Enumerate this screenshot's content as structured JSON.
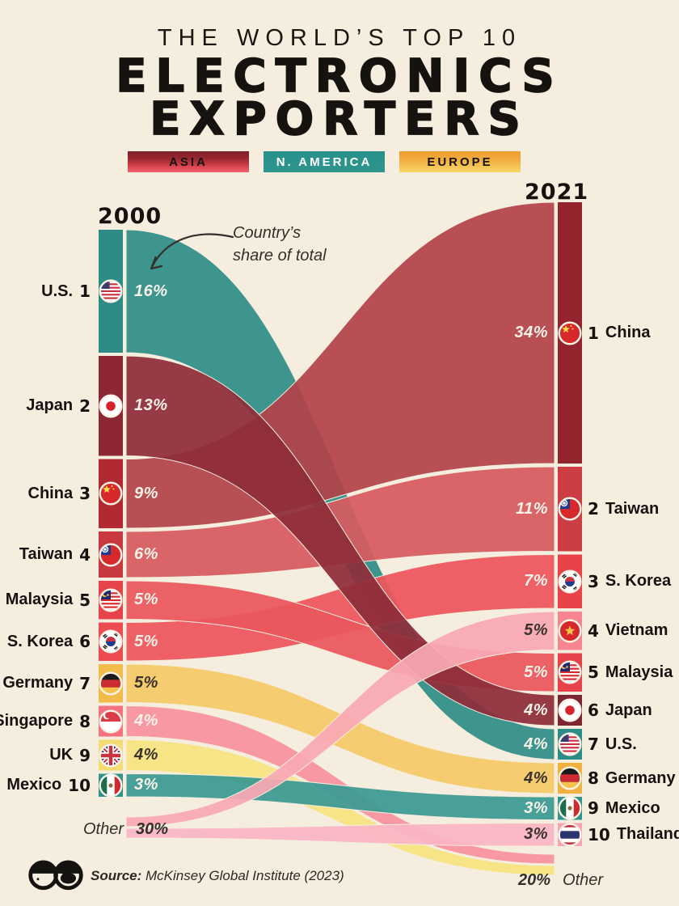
{
  "page": {
    "background": "#F5EEDF"
  },
  "header": {
    "kicker": "THE WORLD’S TOP 10",
    "title_line1": "ELECTRONICS",
    "title_line2": "EXPORTERS"
  },
  "legend": [
    {
      "label": "ASIA",
      "text_color": "#16120F",
      "stops": [
        "#7E1F28",
        "#9A2730 35%",
        "#C23841 60%",
        "#E24E59 80%",
        "#F2616D"
      ]
    },
    {
      "label": "N. AMERICA",
      "text_color": "#FFFFFF",
      "stops": [
        "#27918A",
        "#2F968E"
      ]
    },
    {
      "label": "EUROPE",
      "text_color": "#16120F",
      "stops": [
        "#EE9E30",
        "#F1AC3E 40%",
        "#F4C254 70%",
        "#F6D767"
      ]
    }
  ],
  "columns": {
    "left_year": "2000",
    "right_year": "2021"
  },
  "annotation": {
    "line1": "Country’s",
    "line2": "share of total"
  },
  "other_left": {
    "label": "Other",
    "share": "30%"
  },
  "other_right": {
    "share": "20%",
    "label": "Other"
  },
  "source": {
    "prefix": "Source:",
    "text": " McKinsey Global Institute (2023)"
  },
  "chart_data": {
    "type": "sankey",
    "title": "The World's Top 10 Electronics Exporters",
    "unit": "country share of total electronics exports (%)",
    "years": [
      "2000",
      "2021"
    ],
    "legend_position": "top",
    "regions": {
      "Asia": "#C23841",
      "N. America": "#2D8C85",
      "Europe": "#F2BC4B"
    },
    "left_nodes": [
      {
        "rank": 1,
        "country": "U.S.",
        "share_pct": 16,
        "region": "N. America",
        "flag": "us",
        "bar_color": "#2D8C85",
        "label_style": "light"
      },
      {
        "rank": 2,
        "country": "Japan",
        "share_pct": 13,
        "region": "Asia",
        "flag": "jp",
        "bar_color": "#8C2733",
        "label_style": "light"
      },
      {
        "rank": 3,
        "country": "China",
        "share_pct": 9,
        "region": "Asia",
        "flag": "cn",
        "bar_color": "#B12A31",
        "label_style": "light"
      },
      {
        "rank": 4,
        "country": "Taiwan",
        "share_pct": 6,
        "region": "Asia",
        "flag": "tw",
        "bar_color": "#C8393F",
        "label_style": "light"
      },
      {
        "rank": 5,
        "country": "Malaysia",
        "share_pct": 5,
        "region": "Asia",
        "flag": "my",
        "bar_color": "#E6444A",
        "label_style": "light"
      },
      {
        "rank": 6,
        "country": "S. Korea",
        "share_pct": 5,
        "region": "Asia",
        "flag": "kr",
        "bar_color": "#EC4B51",
        "label_style": "light"
      },
      {
        "rank": 7,
        "country": "Germany",
        "share_pct": 5,
        "region": "Europe",
        "flag": "de",
        "bar_color": "#F2BC4B",
        "label_style": "dark"
      },
      {
        "rank": 8,
        "country": "Singapore",
        "share_pct": 4,
        "region": "Asia",
        "flag": "sg",
        "bar_color": "#F4737E",
        "label_style": "light"
      },
      {
        "rank": 9,
        "country": "UK",
        "share_pct": 4,
        "region": "Europe",
        "flag": "gb",
        "bar_color": "#F3DC72",
        "label_style": "dark"
      },
      {
        "rank": 10,
        "country": "Mexico",
        "share_pct": 3,
        "region": "N. America",
        "flag": "mx",
        "bar_color": "#31948C",
        "label_style": "light"
      }
    ],
    "right_nodes": [
      {
        "rank": 1,
        "country": "China",
        "share_pct": 34,
        "region": "Asia",
        "flag": "cn",
        "bar_color": "#93232C",
        "label_style": "light"
      },
      {
        "rank": 2,
        "country": "Taiwan",
        "share_pct": 11,
        "region": "Asia",
        "flag": "tw",
        "bar_color": "#CC3E44",
        "label_style": "light"
      },
      {
        "rank": 3,
        "country": "S. Korea",
        "share_pct": 7,
        "region": "Asia",
        "flag": "kr",
        "bar_color": "#E94349",
        "label_style": "light"
      },
      {
        "rank": 4,
        "country": "Vietnam",
        "share_pct": 5,
        "region": "Asia",
        "flag": "vn",
        "bar_color": "#F58691",
        "label_style": "dark"
      },
      {
        "rank": 5,
        "country": "Malaysia",
        "share_pct": 5,
        "region": "Asia",
        "flag": "my",
        "bar_color": "#E6444A",
        "label_style": "light"
      },
      {
        "rank": 6,
        "country": "Japan",
        "share_pct": 4,
        "region": "Asia",
        "flag": "jp",
        "bar_color": "#7D2530",
        "label_style": "light"
      },
      {
        "rank": 7,
        "country": "U.S.",
        "share_pct": 4,
        "region": "N. America",
        "flag": "us",
        "bar_color": "#2D8C85",
        "label_style": "light"
      },
      {
        "rank": 8,
        "country": "Germany",
        "share_pct": 4,
        "region": "Europe",
        "flag": "de",
        "bar_color": "#F1B140",
        "label_style": "dark"
      },
      {
        "rank": 9,
        "country": "Mexico",
        "share_pct": 3,
        "region": "N. America",
        "flag": "mx",
        "bar_color": "#31948C",
        "label_style": "light"
      },
      {
        "rank": 10,
        "country": "Thailand",
        "share_pct": 3,
        "region": "Asia",
        "flag": "th",
        "bar_color": "#F8A2B6",
        "label_style": "dark"
      }
    ],
    "left_other": {
      "label": "Other",
      "share_pct": 30
    },
    "right_other": {
      "label": "Other",
      "share_pct": 20
    },
    "flows": [
      {
        "id": "us",
        "from": "U.S.",
        "to": "U.S.",
        "pct_2000": 16,
        "pct_2021": 4,
        "color": "#2E8E87"
      },
      {
        "id": "japan",
        "from": "Japan",
        "to": "Japan",
        "pct_2000": 13,
        "pct_2021": 4,
        "color": "#8E2D39"
      },
      {
        "id": "china",
        "from": "China",
        "to": "China",
        "pct_2000": 9,
        "pct_2021": 34,
        "color": "#B2434A"
      },
      {
        "id": "taiwan",
        "from": "Taiwan",
        "to": "Taiwan",
        "pct_2000": 6,
        "pct_2021": 11,
        "color": "#D65A60"
      },
      {
        "id": "malaysia",
        "from": "Malaysia",
        "to": "Malaysia",
        "pct_2000": 5,
        "pct_2021": 5,
        "color": "#EA565C"
      },
      {
        "id": "skorea",
        "from": "S. Korea",
        "to": "S. Korea",
        "pct_2000": 5,
        "pct_2021": 7,
        "color": "#ED555B"
      },
      {
        "id": "germany",
        "from": "Germany",
        "to": "Germany",
        "pct_2000": 5,
        "pct_2021": 4,
        "color": "#F4C966"
      },
      {
        "id": "singapore",
        "from": "Singapore",
        "to": "Other",
        "pct_2000": 4,
        "pct_2021": null,
        "color": "#F6919D"
      },
      {
        "id": "uk",
        "from": "UK",
        "to": "Other",
        "pct_2000": 4,
        "pct_2021": null,
        "color": "#F5E37F"
      },
      {
        "id": "mexico",
        "from": "Mexico",
        "to": "Mexico",
        "pct_2000": 3,
        "pct_2021": 3,
        "color": "#3A9A92"
      },
      {
        "id": "vietnam",
        "from": "Other",
        "to": "Vietnam",
        "pct_2000": null,
        "pct_2021": 5,
        "color": "#F9A9B4"
      },
      {
        "id": "thailand",
        "from": "Other",
        "to": "Thailand",
        "pct_2000": null,
        "pct_2021": 3,
        "color": "#FAB5C5"
      }
    ]
  }
}
